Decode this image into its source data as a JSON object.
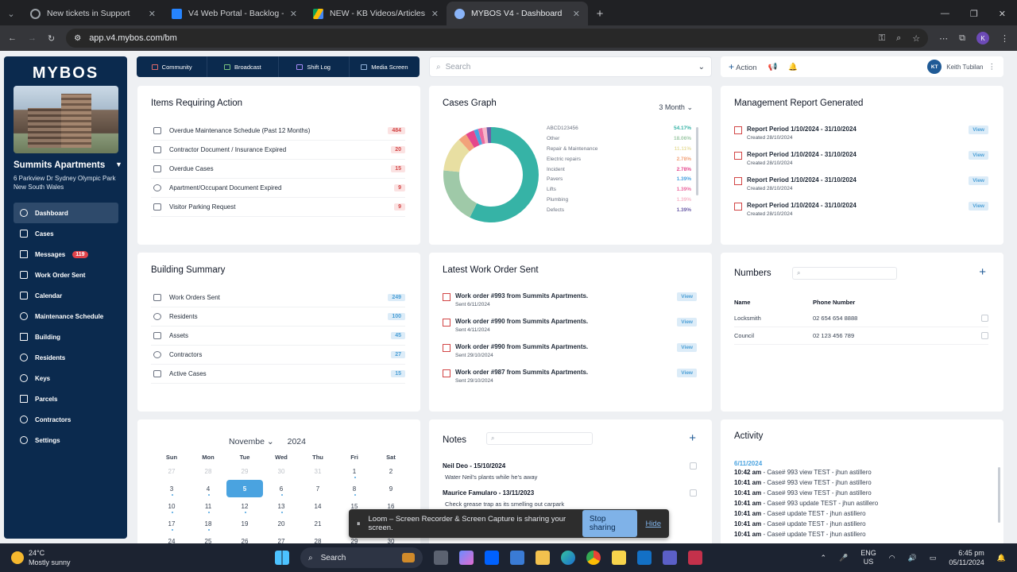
{
  "browser": {
    "tabs": [
      {
        "title": "New tickets in Support",
        "color": "#9aa0a6"
      },
      {
        "title": "V4 Web Portal - Backlog - Jira",
        "color": "#2684ff"
      },
      {
        "title": "NEW - KB Videos/Articles",
        "color": "#fbbc04"
      },
      {
        "title": "MYBOS V4 - Dashboard",
        "color": "#8ab4f8"
      }
    ],
    "url": "app.v4.mybos.com/bm",
    "profile_initial": "K"
  },
  "sidebar": {
    "logo": "MYBOS",
    "site_name": "Summits Apartments",
    "address_line1": "6 Parkview Dr Sydney Olympic Park",
    "address_line2": "New South Wales",
    "items": [
      {
        "label": "Dashboard",
        "icon": "dashboard-icon"
      },
      {
        "label": "Cases",
        "icon": "cases-icon"
      },
      {
        "label": "Messages",
        "icon": "messages-icon",
        "badge": "119"
      },
      {
        "label": "Work Order Sent",
        "icon": "work-order-icon"
      },
      {
        "label": "Calendar",
        "icon": "calendar-icon"
      },
      {
        "label": "Maintenance Schedule",
        "icon": "maintenance-icon"
      },
      {
        "label": "Building",
        "icon": "building-icon"
      },
      {
        "label": "Residents",
        "icon": "residents-icon"
      },
      {
        "label": "Keys",
        "icon": "keys-icon"
      },
      {
        "label": "Parcels",
        "icon": "parcels-icon"
      },
      {
        "label": "Contractors",
        "icon": "contractors-icon"
      },
      {
        "label": "Settings",
        "icon": "settings-icon"
      }
    ]
  },
  "topnav": [
    "Community",
    "Broadcast",
    "Shift Log",
    "Media Screen"
  ],
  "search": {
    "placeholder": "Search"
  },
  "actionbar": {
    "action_label": "Action",
    "user_initials": "KT",
    "user_name": "Keith Tubilan"
  },
  "items_requiring_action": {
    "title": "Items Requiring Action",
    "rows": [
      {
        "label": "Overdue Maintenance Schedule (Past 12 Months)",
        "count": "484"
      },
      {
        "label": "Contractor Document / Insurance Expired",
        "count": "20"
      },
      {
        "label": "Overdue Cases",
        "count": "15"
      },
      {
        "label": "Apartment/Occupant Document Expired",
        "count": "9"
      },
      {
        "label": "Visitor Parking Request",
        "count": "9"
      }
    ]
  },
  "cases_graph": {
    "title": "Cases Graph",
    "period": "3 Month",
    "legend": [
      {
        "label": "ABCD123456",
        "value": "54.17%",
        "color": "#36b3a6"
      },
      {
        "label": "Other",
        "value": "18.06%",
        "color": "#9fc9a8"
      },
      {
        "label": "Repair & Maintenance",
        "value": "11.11%",
        "color": "#e8dfa2"
      },
      {
        "label": "Electric repairs",
        "value": "2.78%",
        "color": "#f2a27a"
      },
      {
        "label": "Incident",
        "value": "2.78%",
        "color": "#e5478c"
      },
      {
        "label": "Pavers",
        "value": "1.39%",
        "color": "#4aa3e0"
      },
      {
        "label": "Lifts",
        "value": "1.39%",
        "color": "#ec6aa0"
      },
      {
        "label": "Plumbing",
        "value": "1.39%",
        "color": "#f7b7c9"
      },
      {
        "label": "Defects",
        "value": "1.39%",
        "color": "#6d5fa8"
      }
    ]
  },
  "management_report": {
    "title": "Management Report Generated",
    "items": [
      {
        "title": "Report Period 1/10/2024 - 31/10/2024",
        "sub": "Created 28/10/2024",
        "view": "View"
      },
      {
        "title": "Report Period 1/10/2024 - 31/10/2024",
        "sub": "Created 28/10/2024",
        "view": "View"
      },
      {
        "title": "Report Period 1/10/2024 - 31/10/2024",
        "sub": "Created 28/10/2024",
        "view": "View"
      },
      {
        "title": "Report Period 1/10/2024 - 31/10/2024",
        "sub": "Created 28/10/2024",
        "view": "View"
      }
    ]
  },
  "building_summary": {
    "title": "Building Summary",
    "rows": [
      {
        "label": "Work Orders Sent",
        "count": "249"
      },
      {
        "label": "Residents",
        "count": "100"
      },
      {
        "label": "Assets",
        "count": "45"
      },
      {
        "label": "Contractors",
        "count": "27"
      },
      {
        "label": "Active Cases",
        "count": "15"
      }
    ]
  },
  "latest_work_orders": {
    "title": "Latest Work Order Sent",
    "items": [
      {
        "title": "Work order #993 from Summits Apartments.",
        "sub": "Sent 6/11/2024",
        "view": "View"
      },
      {
        "title": "Work order #990 from Summits Apartments.",
        "sub": "Sent 4/11/2024",
        "view": "View"
      },
      {
        "title": "Work order #990 from Summits Apartments.",
        "sub": "Sent 29/10/2024",
        "view": "View"
      },
      {
        "title": "Work order #987 from Summits Apartments.",
        "sub": "Sent 29/10/2024",
        "view": "View"
      }
    ]
  },
  "numbers": {
    "title": "Numbers",
    "col_name": "Name",
    "col_phone": "Phone Number",
    "rows": [
      {
        "name": "Locksmith",
        "phone": "02 654 654 8888"
      },
      {
        "name": "Council",
        "phone": "02 123 456 789"
      }
    ]
  },
  "calendar": {
    "month": "Novembe",
    "year": "2024",
    "dow": [
      "Sun",
      "Mon",
      "Tue",
      "Wed",
      "Thu",
      "Fri",
      "Sat"
    ],
    "days": [
      "27",
      "28",
      "29",
      "30",
      "31",
      "1",
      "2",
      "3",
      "4",
      "5",
      "6",
      "7",
      "8",
      "9",
      "10",
      "11",
      "12",
      "13",
      "14",
      "15",
      "16",
      "17",
      "18",
      "19",
      "20",
      "21",
      "22",
      "23",
      "24",
      "25",
      "26",
      "27",
      "28",
      "29",
      "30"
    ]
  },
  "notes": {
    "title": "Notes",
    "items": [
      {
        "name": "Neil Deo - 15/10/2024",
        "text": "Water Neil's plants while he's away"
      },
      {
        "name": "Maurice Famularo - 13/11/2023",
        "text": "Check grease trap as its smelling out carpark"
      }
    ]
  },
  "activity": {
    "title": "Activity",
    "date": "6/11/2024",
    "items": [
      {
        "time": "10:42 am",
        "text": " - Case# 993 view TEST - jhun astillero"
      },
      {
        "time": "10:41 am",
        "text": " - Case# 993 view TEST - jhun astillero"
      },
      {
        "time": "10:41 am",
        "text": " - Case# 993 view TEST - jhun astillero"
      },
      {
        "time": "10:41 am",
        "text": " - Case# 993 update TEST - jhun astillero"
      },
      {
        "time": "10:41 am",
        "text": " - Case# update TEST - jhun astillero"
      },
      {
        "time": "10:41 am",
        "text": " - Case# update TEST - jhun astillero"
      },
      {
        "time": "10:41 am",
        "text": " - Case# update TEST - jhun astillero"
      }
    ]
  },
  "loom": {
    "message": "Loom – Screen Recorder & Screen Capture is sharing your screen.",
    "stop": "Stop sharing",
    "hide": "Hide"
  },
  "taskbar": {
    "temp": "24°C",
    "weather": "Mostly sunny",
    "search": "Search",
    "lang1": "ENG",
    "lang2": "US",
    "time": "6:45 pm",
    "date": "05/11/2024"
  }
}
